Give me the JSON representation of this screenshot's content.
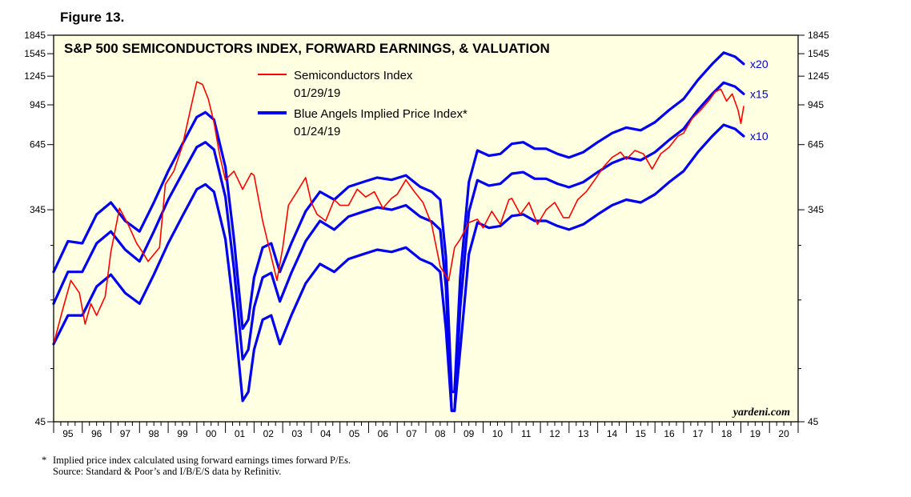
{
  "figure_label": "Figure 13.",
  "footnote": {
    "marker": "*",
    "line1": "Implied price index calculated using forward earnings times forward P/Es.",
    "line2": "Source: Standard & Poor’s and I/B/E/S data by Refinitiv."
  },
  "chart_data": {
    "type": "line",
    "title": "S&P 500 SEMICONDUCTORS INDEX, FORWARD EARNINGS, & VALUATION",
    "y_scale": "log",
    "ylim": [
      45,
      1845
    ],
    "y_ticks": [
      45,
      345,
      645,
      945,
      1245,
      1545,
      1845
    ],
    "y_tick_labels": [
      "45",
      "345",
      "645",
      "945",
      "1245",
      "1545",
      "1845"
    ],
    "xlim": [
      1995,
      2021
    ],
    "x_tick_labels": [
      "95",
      "96",
      "97",
      "98",
      "99",
      "00",
      "01",
      "02",
      "03",
      "04",
      "05",
      "06",
      "07",
      "08",
      "09",
      "10",
      "11",
      "12",
      "13",
      "14",
      "15",
      "16",
      "17",
      "18",
      "19",
      "20"
    ],
    "watermark": "yardeni.com",
    "colors": {
      "semis": "#ff0000",
      "implied": "#0000ee",
      "background": "#ffffe1",
      "text_blue": "#0000cc"
    },
    "legend": [
      {
        "name": "Semiconductors Index",
        "date": "01/29/19",
        "color": "#ff0000"
      },
      {
        "name": "Blue Angels Implied Price Index*",
        "date": "01/24/19",
        "color": "#0000ee"
      }
    ],
    "series": [
      {
        "name": "Semiconductors Index",
        "x": [
          1995.0,
          1995.3,
          1995.6,
          1995.9,
          1996.1,
          1996.3,
          1996.5,
          1996.8,
          1997.0,
          1997.3,
          1997.6,
          1997.9,
          1998.1,
          1998.3,
          1998.7,
          1998.9,
          1999.2,
          1999.5,
          1999.8,
          2000.0,
          2000.2,
          2000.4,
          2000.6,
          2000.8,
          2001.0,
          2001.3,
          2001.6,
          2001.9,
          2002.0,
          2002.3,
          2002.6,
          2002.8,
          2003.0,
          2003.2,
          2003.5,
          2003.8,
          2004.0,
          2004.2,
          2004.5,
          2004.8,
          2005.0,
          2005.3,
          2005.6,
          2005.9,
          2006.2,
          2006.5,
          2006.8,
          2007.0,
          2007.3,
          2007.6,
          2007.9,
          2008.2,
          2008.5,
          2008.8,
          2009.0,
          2009.2,
          2009.5,
          2009.8,
          2010.0,
          2010.3,
          2010.6,
          2010.9,
          2011.0,
          2011.3,
          2011.6,
          2011.9,
          2012.2,
          2012.5,
          2012.8,
          2013.0,
          2013.3,
          2013.6,
          2013.9,
          2014.2,
          2014.5,
          2014.8,
          2015.0,
          2015.3,
          2015.6,
          2015.9,
          2016.2,
          2016.5,
          2016.8,
          2017.0,
          2017.3,
          2017.6,
          2017.9,
          2018.1,
          2018.3,
          2018.5,
          2018.7,
          2018.9,
          2019.0,
          2019.1
        ],
        "values": [
          95,
          130,
          175,
          155,
          115,
          140,
          125,
          150,
          230,
          350,
          300,
          250,
          230,
          210,
          240,
          440,
          500,
          640,
          930,
          1180,
          1150,
          1000,
          800,
          580,
          460,
          500,
          420,
          490,
          480,
          310,
          220,
          175,
          240,
          360,
          410,
          470,
          370,
          330,
          310,
          380,
          360,
          360,
          420,
          390,
          410,
          350,
          385,
          400,
          460,
          410,
          370,
          300,
          200,
          175,
          240,
          260,
          305,
          315,
          290,
          340,
          300,
          380,
          385,
          330,
          370,
          300,
          345,
          370,
          320,
          320,
          380,
          410,
          460,
          520,
          570,
          600,
          560,
          610,
          590,
          510,
          590,
          630,
          700,
          720,
          830,
          900,
          990,
          1070,
          1100,
          980,
          1050,
          900,
          790,
          930
        ]
      },
      {
        "name": "x20",
        "x": [
          1995.0,
          1995.5,
          1996.0,
          1996.5,
          1997.0,
          1997.5,
          1998.0,
          1998.5,
          1999.0,
          1999.5,
          2000.0,
          2000.3,
          2000.6,
          2001.0,
          2001.3,
          2001.6,
          2001.8,
          2002.0,
          2002.3,
          2002.6,
          2002.9,
          2003.3,
          2003.8,
          2004.3,
          2004.8,
          2005.3,
          2005.8,
          2006.3,
          2006.8,
          2007.3,
          2007.8,
          2008.2,
          2008.5,
          2008.7,
          2008.9,
          2009.0,
          2009.2,
          2009.5,
          2009.8,
          2010.2,
          2010.6,
          2011.0,
          2011.4,
          2011.8,
          2012.2,
          2012.6,
          2013.0,
          2013.5,
          2014.0,
          2014.5,
          2015.0,
          2015.5,
          2016.0,
          2016.5,
          2017.0,
          2017.5,
          2018.0,
          2018.4,
          2018.8,
          2019.1
        ],
        "values": [
          190,
          255,
          250,
          330,
          370,
          310,
          280,
          370,
          500,
          650,
          840,
          880,
          820,
          520,
          260,
          110,
          120,
          180,
          240,
          250,
          190,
          250,
          340,
          410,
          380,
          430,
          450,
          470,
          460,
          480,
          430,
          410,
          380,
          220,
          60,
          60,
          180,
          450,
          610,
          580,
          590,
          650,
          660,
          620,
          620,
          590,
          570,
          600,
          660,
          720,
          760,
          740,
          800,
          900,
          1000,
          1200,
          1400,
          1560,
          1500,
          1400
        ]
      },
      {
        "name": "x15",
        "x": [
          1995.0,
          1995.5,
          1996.0,
          1996.5,
          1997.0,
          1997.5,
          1998.0,
          1998.5,
          1999.0,
          1999.5,
          2000.0,
          2000.3,
          2000.6,
          2001.0,
          2001.3,
          2001.6,
          2001.8,
          2002.0,
          2002.3,
          2002.6,
          2002.9,
          2003.3,
          2003.8,
          2004.3,
          2004.8,
          2005.3,
          2005.8,
          2006.3,
          2006.8,
          2007.3,
          2007.8,
          2008.2,
          2008.5,
          2008.7,
          2008.9,
          2009.0,
          2009.2,
          2009.5,
          2009.8,
          2010.2,
          2010.6,
          2011.0,
          2011.4,
          2011.8,
          2012.2,
          2012.6,
          2013.0,
          2013.5,
          2014.0,
          2014.5,
          2015.0,
          2015.5,
          2016.0,
          2016.5,
          2017.0,
          2017.5,
          2018.0,
          2018.4,
          2018.8,
          2019.1
        ],
        "values": [
          140,
          190,
          190,
          250,
          280,
          235,
          210,
          280,
          380,
          490,
          630,
          660,
          615,
          390,
          195,
          82,
          90,
          135,
          180,
          188,
          143,
          188,
          255,
          310,
          285,
          323,
          338,
          353,
          345,
          360,
          323,
          308,
          285,
          165,
          50,
          50,
          135,
          338,
          458,
          435,
          443,
          488,
          495,
          465,
          465,
          443,
          428,
          450,
          495,
          540,
          570,
          555,
          600,
          675,
          750,
          900,
          1050,
          1170,
          1125,
          1050
        ]
      },
      {
        "name": "x10",
        "x": [
          1995.0,
          1995.5,
          1996.0,
          1996.5,
          1997.0,
          1997.5,
          1998.0,
          1998.5,
          1999.0,
          1999.5,
          2000.0,
          2000.3,
          2000.6,
          2001.0,
          2001.3,
          2001.6,
          2001.8,
          2002.0,
          2002.3,
          2002.6,
          2002.9,
          2003.3,
          2003.8,
          2004.3,
          2004.8,
          2005.3,
          2005.8,
          2006.3,
          2006.8,
          2007.3,
          2007.8,
          2008.2,
          2008.5,
          2008.7,
          2008.9,
          2009.0,
          2009.2,
          2009.5,
          2009.8,
          2010.2,
          2010.6,
          2011.0,
          2011.4,
          2011.8,
          2012.2,
          2012.6,
          2013.0,
          2013.5,
          2014.0,
          2014.5,
          2015.0,
          2015.5,
          2016.0,
          2016.5,
          2017.0,
          2017.5,
          2018.0,
          2018.4,
          2018.8,
          2019.1
        ],
        "values": [
          95,
          125,
          125,
          165,
          185,
          155,
          140,
          185,
          250,
          325,
          420,
          440,
          410,
          260,
          130,
          55,
          60,
          90,
          120,
          125,
          95,
          125,
          170,
          205,
          190,
          215,
          225,
          235,
          230,
          240,
          215,
          205,
          190,
          110,
          50,
          50,
          90,
          225,
          305,
          290,
          295,
          325,
          330,
          310,
          310,
          295,
          285,
          300,
          330,
          360,
          380,
          370,
          400,
          450,
          500,
          600,
          700,
          780,
          750,
          700
        ]
      }
    ],
    "series_labels": [
      {
        "series": "x20",
        "text": "x20"
      },
      {
        "series": "x15",
        "text": "x15"
      },
      {
        "series": "x10",
        "text": "x10"
      }
    ]
  }
}
